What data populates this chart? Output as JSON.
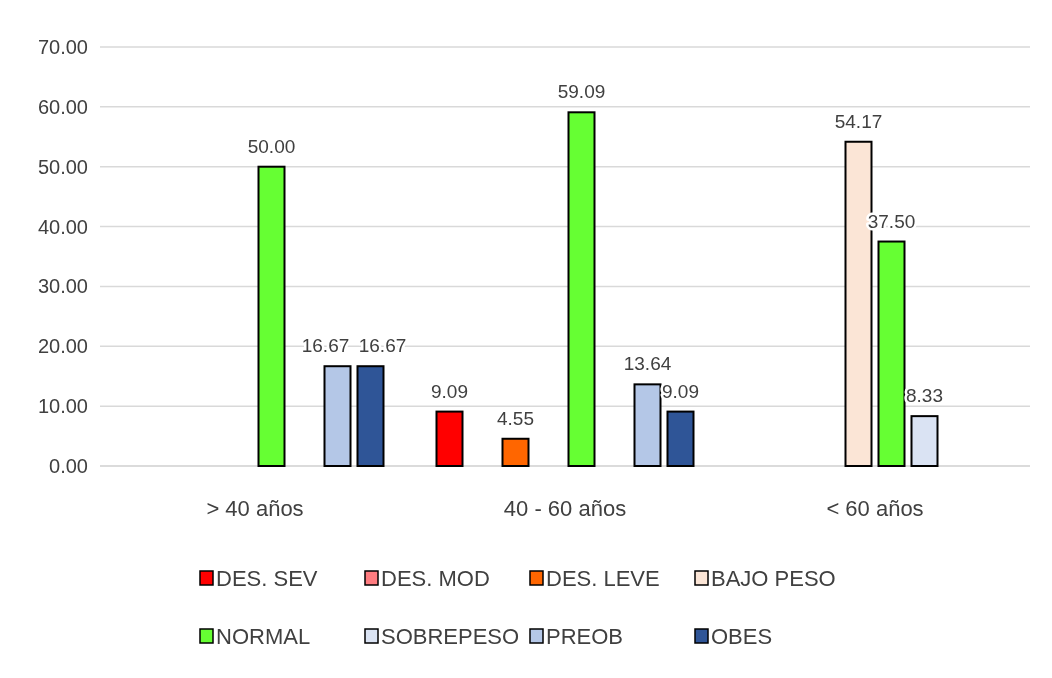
{
  "chart_data": {
    "type": "bar",
    "categories": [
      "> 40 años",
      "40 - 60 años",
      "< 60 años"
    ],
    "series": [
      {
        "name": "DES. SEV",
        "color": "#ff0000",
        "values": [
          null,
          9.09,
          null
        ],
        "value_labels": [
          null,
          "9.09",
          null
        ]
      },
      {
        "name": "DES. MOD",
        "color": "#ff7c80",
        "values": [
          null,
          null,
          null
        ],
        "value_labels": [
          null,
          null,
          null
        ]
      },
      {
        "name": "DES. LEVE",
        "color": "#ff6600",
        "values": [
          null,
          4.55,
          null
        ],
        "value_labels": [
          null,
          "4.55",
          null
        ]
      },
      {
        "name": "BAJO PESO",
        "color": "#fbe5d6",
        "values": [
          null,
          null,
          54.17
        ],
        "value_labels": [
          null,
          null,
          "54.17"
        ]
      },
      {
        "name": "NORMAL",
        "color": "#66ff33",
        "values": [
          50.0,
          59.09,
          37.5
        ],
        "value_labels": [
          "50.00",
          "59.09",
          "37.50"
        ]
      },
      {
        "name": "SOBREPESO",
        "color": "#dae3f3",
        "values": [
          null,
          null,
          8.33
        ],
        "value_labels": [
          null,
          null,
          "8.33"
        ]
      },
      {
        "name": "PREOB",
        "color": "#b4c7e7",
        "values": [
          16.67,
          13.64,
          null
        ],
        "value_labels": [
          "16.67",
          "13.64",
          null
        ]
      },
      {
        "name": "OBES",
        "color": "#2f5597",
        "values": [
          16.67,
          9.09,
          null
        ],
        "value_labels": [
          "16.67",
          "9.09",
          null
        ]
      }
    ],
    "ylim": [
      0,
      70
    ],
    "yticks": [
      {
        "value": 0,
        "label": "0.00"
      },
      {
        "value": 10,
        "label": "10.00"
      },
      {
        "value": 20,
        "label": "20.00"
      },
      {
        "value": 30,
        "label": "30.00"
      },
      {
        "value": 40,
        "label": "40.00"
      },
      {
        "value": 50,
        "label": "50.00"
      },
      {
        "value": 60,
        "label": "60.00"
      },
      {
        "value": 70,
        "label": "70.00"
      }
    ],
    "grid": "y",
    "legend": "bottom"
  }
}
